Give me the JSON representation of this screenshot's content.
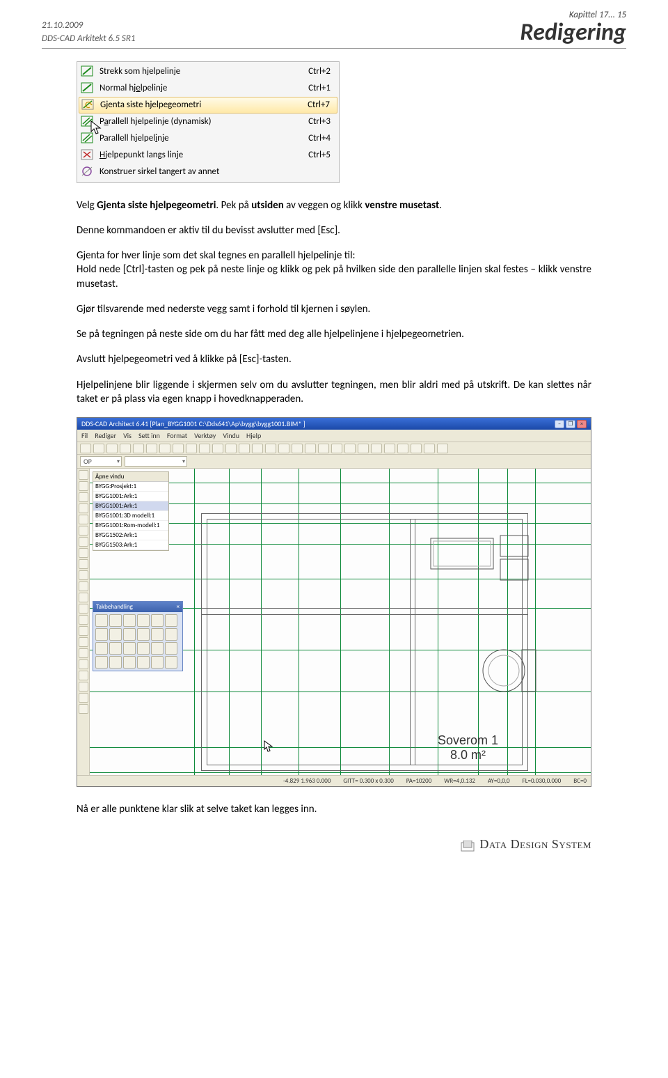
{
  "header": {
    "date": "21.10.2009",
    "product": "DDS-CAD Arkitekt  6.5 SR1",
    "chapter": "Kapittel 17... 15",
    "title": "Redigering"
  },
  "contextMenu": {
    "items": [
      {
        "label": "Strekk som hjelpelinje",
        "u_idx": 12,
        "shortcut": "Ctrl+2",
        "icon_color": "#1a8a1a",
        "icon_type": "diag"
      },
      {
        "label": "Normal hjelpelinje",
        "u_idx": 9,
        "shortcut": "Ctrl+1",
        "icon_color": "#1a8a1a",
        "icon_type": "diag"
      },
      {
        "label": "Gjenta siste hjelpegeometri",
        "u_idx": 1,
        "shortcut": "Ctrl+7",
        "icon_color": "#c09000",
        "icon_type": "repeat",
        "selected": true
      },
      {
        "label": "Parallell hjelpelinje (dynamisk)",
        "u_idx": 1,
        "shortcut": "Ctrl+3",
        "icon_color": "#1a8a1a",
        "icon_type": "para"
      },
      {
        "label": "Parallell hjelpelinje",
        "u_idx": 17,
        "shortcut": "Ctrl+4",
        "icon_color": "#1a8a1a",
        "icon_type": "para"
      },
      {
        "label": "Hjelpepunkt langs linje",
        "u_idx": 0,
        "shortcut": "Ctrl+5",
        "icon_color": "#c03030",
        "icon_type": "cross"
      },
      {
        "label": "Konstruer sirkel tangert av annet",
        "u_idx": -1,
        "shortcut": "",
        "icon_color": "#8a4aa0",
        "icon_type": "circle"
      }
    ]
  },
  "body": {
    "p1_pre": "Velg ",
    "p1_b1": "Gjenta siste hjelpegeometri",
    "p1_mid": ". Pek på ",
    "p1_b2": "utsiden",
    "p1_mid2": " av veggen og klikk ",
    "p1_b3": "venstre musetast",
    "p1_end": ".",
    "p2": "Denne kommandoen er aktiv til du bevisst avslutter med [Esc].",
    "p3": "Gjenta for hver linje som det skal tegnes en parallell hjelpelinje til:\nHold nede [Ctrl]-tasten og pek på neste linje og klikk og pek på hvilken side den parallelle linjen skal festes – klikk venstre musetast.",
    "p4": "Gjør tilsvarende med nederste vegg samt i forhold til kjernen i søylen.",
    "p5": "Se på tegningen på neste side om du har fått med deg alle hjelpelinjene i hjelpegeometrien.",
    "p6": "Avslutt hjelpegeometri ved å klikke på [Esc]-tasten.",
    "p7": "Hjelpelinjene blir liggende i skjermen selv om du avslutter tegningen, men blir aldri med på utskrift. De kan slettes når taket er på plass via egen knapp i hovedknapperaden."
  },
  "cad": {
    "title": "DDS-CAD Architect 6.41  [Plan_BYGG1001  C:\\Dds641\\Ap\\bygg\\bygg1001.BIM* ]",
    "menubar": [
      "Fil",
      "Rediger",
      "Vis",
      "Sett inn",
      "Format",
      "Verktøy",
      "Vindu",
      "Hjelp"
    ],
    "combo1": "OP",
    "panel_header": "Åpne vindu",
    "panel_items": [
      "BYGG:Prosjekt:1",
      "BYGG1001:Ark:1",
      "BYGG1001:Ark:1",
      "BYGG1001:3D modell:1",
      "BYGG1001:Rom-modell:1",
      "BYGG1502:Ark:1",
      "BYGG1503:Ark:1"
    ],
    "panel_sel_index": 2,
    "toolbox_title": "Takbehandling",
    "room_name": "Soverom 1",
    "room_area": "8.0 m²",
    "status": {
      "coords": "-4.829    1.963    0.000",
      "gitt": "GITT= 0.300 x 0.300",
      "pa": "PA=10200",
      "wr": "WR=4,0.132",
      "ay": "AY=0,0,0",
      "fl": "FL=0.030,0.000",
      "bc": "BC=0"
    },
    "guide_h": [
      20,
      50,
      78,
      108,
      158,
      200,
      260,
      320,
      400,
      436
    ],
    "guide_v": [
      150,
      200,
      246,
      300,
      360,
      430,
      500,
      558,
      600,
      640
    ]
  },
  "footnote": "Nå er alle punktene klar slik at selve taket kan legges inn.",
  "footer_logo": "Data Design System"
}
